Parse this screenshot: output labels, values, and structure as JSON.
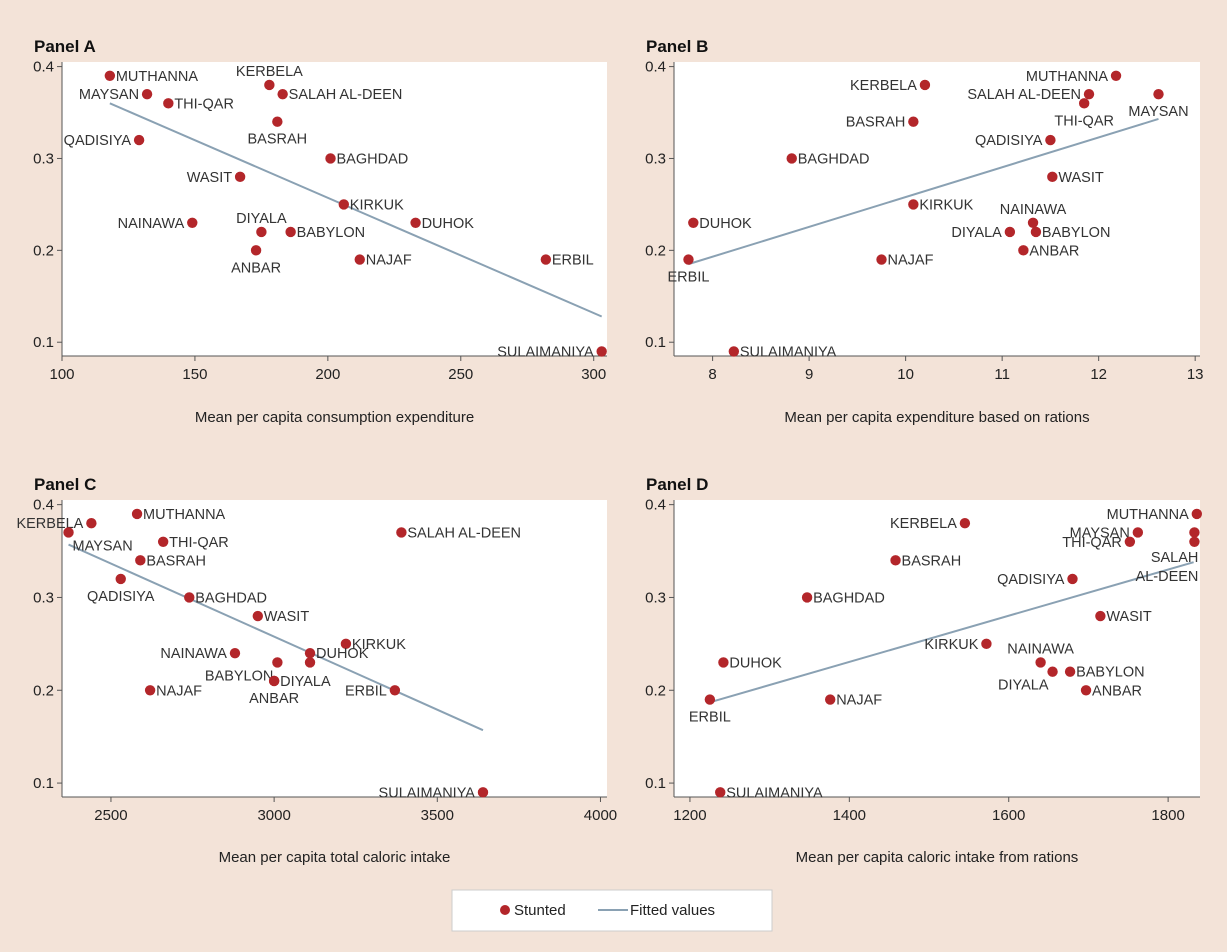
{
  "legend": {
    "stunted_label": "Stunted",
    "fitted_label": "Fitted values",
    "point_color": "#b3262a",
    "line_color": "#8aa1b3"
  },
  "chart_data": [
    {
      "panel": "Panel A",
      "type": "scatter",
      "xlabel": "Mean per capita consumption expenditure",
      "ylabel": "",
      "xlim": [
        100,
        305
      ],
      "ylim": [
        0.085,
        0.405
      ],
      "xticks": [
        100,
        150,
        200,
        250,
        300
      ],
      "yticks": [
        0.1,
        0.2,
        0.3,
        0.4
      ],
      "fit": [
        [
          118,
          0.36
        ],
        [
          303,
          0.128
        ]
      ],
      "points": [
        {
          "name": "MUTHANNA",
          "x": 118,
          "y": 0.39,
          "anchor": "right"
        },
        {
          "name": "MAYSAN",
          "x": 132,
          "y": 0.37,
          "anchor": "left"
        },
        {
          "name": "THI-QAR",
          "x": 140,
          "y": 0.36,
          "anchor": "right"
        },
        {
          "name": "QADISIYA",
          "x": 129,
          "y": 0.32,
          "anchor": "left"
        },
        {
          "name": "KERBELA",
          "x": 178,
          "y": 0.38,
          "anchor": "above"
        },
        {
          "name": "SALAH AL-DEEN",
          "x": 183,
          "y": 0.37,
          "anchor": "right"
        },
        {
          "name": "BASRAH",
          "x": 181,
          "y": 0.34,
          "anchor": "below"
        },
        {
          "name": "BAGHDAD",
          "x": 201,
          "y": 0.3,
          "anchor": "right"
        },
        {
          "name": "WASIT",
          "x": 167,
          "y": 0.28,
          "anchor": "left"
        },
        {
          "name": "KIRKUK",
          "x": 206,
          "y": 0.25,
          "anchor": "right"
        },
        {
          "name": "NAINAWA",
          "x": 149,
          "y": 0.23,
          "anchor": "left"
        },
        {
          "name": "DUHOK",
          "x": 233,
          "y": 0.23,
          "anchor": "right"
        },
        {
          "name": "DIYALA",
          "x": 175,
          "y": 0.22,
          "anchor": "above"
        },
        {
          "name": "BABYLON",
          "x": 186,
          "y": 0.22,
          "anchor": "right"
        },
        {
          "name": "ANBAR",
          "x": 173,
          "y": 0.2,
          "anchor": "below"
        },
        {
          "name": "NAJAF",
          "x": 212,
          "y": 0.19,
          "anchor": "right"
        },
        {
          "name": "ERBIL",
          "x": 282,
          "y": 0.19,
          "anchor": "right"
        },
        {
          "name": "SULAIMANIYA",
          "x": 303,
          "y": 0.09,
          "anchor": "left"
        }
      ]
    },
    {
      "panel": "Panel B",
      "type": "scatter",
      "xlabel": "Mean per capita expenditure based on rations",
      "ylabel": "",
      "xlim": [
        7.6,
        13.05
      ],
      "ylim": [
        0.085,
        0.405
      ],
      "xticks": [
        8,
        9,
        10,
        11,
        12,
        13
      ],
      "yticks": [
        0.1,
        0.2,
        0.3,
        0.4
      ],
      "fit": [
        [
          7.75,
          0.185
        ],
        [
          12.62,
          0.343
        ]
      ],
      "points": [
        {
          "name": "KERBELA",
          "x": 10.2,
          "y": 0.38,
          "anchor": "left"
        },
        {
          "name": "MUTHANNA",
          "x": 12.18,
          "y": 0.39,
          "anchor": "left"
        },
        {
          "name": "SALAH AL-DEEN",
          "x": 11.9,
          "y": 0.37,
          "anchor": "left"
        },
        {
          "name": "MAYSAN",
          "x": 12.62,
          "y": 0.37,
          "anchor": "below"
        },
        {
          "name": "THI-QAR",
          "x": 11.85,
          "y": 0.36,
          "anchor": "below"
        },
        {
          "name": "BASRAH",
          "x": 10.08,
          "y": 0.34,
          "anchor": "left"
        },
        {
          "name": "QADISIYA",
          "x": 11.5,
          "y": 0.32,
          "anchor": "left"
        },
        {
          "name": "BAGHDAD",
          "x": 8.82,
          "y": 0.3,
          "anchor": "right"
        },
        {
          "name": "WASIT",
          "x": 11.52,
          "y": 0.28,
          "anchor": "right"
        },
        {
          "name": "KIRKUK",
          "x": 10.08,
          "y": 0.25,
          "anchor": "right"
        },
        {
          "name": "NAINAWA",
          "x": 11.32,
          "y": 0.23,
          "anchor": "above"
        },
        {
          "name": "DUHOK",
          "x": 7.8,
          "y": 0.23,
          "anchor": "right"
        },
        {
          "name": "DIYALA",
          "x": 11.08,
          "y": 0.22,
          "anchor": "left"
        },
        {
          "name": "BABYLON",
          "x": 11.35,
          "y": 0.22,
          "anchor": "right"
        },
        {
          "name": "ANBAR",
          "x": 11.22,
          "y": 0.2,
          "anchor": "right"
        },
        {
          "name": "NAJAF",
          "x": 9.75,
          "y": 0.19,
          "anchor": "right"
        },
        {
          "name": "ERBIL",
          "x": 7.75,
          "y": 0.19,
          "anchor": "below"
        },
        {
          "name": "SULAIMANIYA",
          "x": 8.22,
          "y": 0.09,
          "anchor": "right"
        }
      ]
    },
    {
      "panel": "Panel C",
      "type": "scatter",
      "xlabel": "Mean per capita total caloric intake",
      "ylabel": "",
      "xlim": [
        2350,
        4020
      ],
      "ylim": [
        0.085,
        0.405
      ],
      "xticks": [
        2500,
        3000,
        3500,
        4000
      ],
      "yticks": [
        0.1,
        0.2,
        0.3,
        0.4
      ],
      "fit": [
        [
          2370,
          0.357
        ],
        [
          3640,
          0.157
        ]
      ],
      "points": [
        {
          "name": "KERBELA",
          "x": 2440,
          "y": 0.38,
          "anchor": "left"
        },
        {
          "name": "MUTHANNA",
          "x": 2580,
          "y": 0.39,
          "anchor": "right"
        },
        {
          "name": "MAYSAN",
          "x": 2370,
          "y": 0.37,
          "anchor": "below-right"
        },
        {
          "name": "THI-QAR",
          "x": 2660,
          "y": 0.36,
          "anchor": "right"
        },
        {
          "name": "SALAH AL-DEEN",
          "x": 3390,
          "y": 0.37,
          "anchor": "right"
        },
        {
          "name": "BASRAH",
          "x": 2590,
          "y": 0.34,
          "anchor": "right"
        },
        {
          "name": "QADISIYA",
          "x": 2530,
          "y": 0.32,
          "anchor": "below"
        },
        {
          "name": "BAGHDAD",
          "x": 2740,
          "y": 0.3,
          "anchor": "right"
        },
        {
          "name": "WASIT",
          "x": 2950,
          "y": 0.28,
          "anchor": "right"
        },
        {
          "name": "KIRKUK",
          "x": 3220,
          "y": 0.25,
          "anchor": "right"
        },
        {
          "name": "NAINAWA",
          "x": 2880,
          "y": 0.24,
          "anchor": "left"
        },
        {
          "name": "DUHOK",
          "x": 3110,
          "y": 0.24,
          "anchor": "right"
        },
        {
          "name": "BABYLON",
          "x": 3010,
          "y": 0.23,
          "anchor": "below-left"
        },
        {
          "name": "DUHOK_2",
          "x": 3110,
          "y": 0.23,
          "anchor": "none"
        },
        {
          "name": "DIYALA",
          "x": 3000,
          "y": 0.21,
          "anchor": "right"
        },
        {
          "name": "ANBAR",
          "x": 3000,
          "y": 0.21,
          "anchor": "below"
        },
        {
          "name": "NAJAF",
          "x": 2620,
          "y": 0.2,
          "anchor": "right"
        },
        {
          "name": "ERBIL",
          "x": 3370,
          "y": 0.2,
          "anchor": "left"
        },
        {
          "name": "SULAIMANIYA",
          "x": 3640,
          "y": 0.09,
          "anchor": "left"
        }
      ]
    },
    {
      "panel": "Panel D",
      "type": "scatter",
      "xlabel": "Mean per capita caloric intake from rations",
      "ylabel": "",
      "xlim": [
        1180,
        1840
      ],
      "ylim": [
        0.085,
        0.405
      ],
      "xticks": [
        1200,
        1400,
        1600,
        1800
      ],
      "yticks": [
        0.1,
        0.2,
        0.3,
        0.4
      ],
      "fit": [
        [
          1225,
          0.187
        ],
        [
          1832,
          0.338
        ]
      ],
      "points": [
        {
          "name": "KERBELA",
          "x": 1545,
          "y": 0.38,
          "anchor": "left"
        },
        {
          "name": "MUTHANNA",
          "x": 1836,
          "y": 0.39,
          "anchor": "left"
        },
        {
          "name": "MAYSAN",
          "x": 1762,
          "y": 0.37,
          "anchor": "left"
        },
        {
          "name": "SALAH AL-DEEN_DOT",
          "x": 1833,
          "y": 0.37,
          "anchor": "none"
        },
        {
          "name": "THI-QAR",
          "x": 1752,
          "y": 0.36,
          "anchor": "left"
        },
        {
          "name": "SALAH AL-DEEN",
          "x": 1833,
          "y": 0.36,
          "anchor": "stacked"
        },
        {
          "name": "BASRAH",
          "x": 1458,
          "y": 0.34,
          "anchor": "right"
        },
        {
          "name": "QADISIYA",
          "x": 1680,
          "y": 0.32,
          "anchor": "left"
        },
        {
          "name": "BAGHDAD",
          "x": 1347,
          "y": 0.3,
          "anchor": "right"
        },
        {
          "name": "WASIT",
          "x": 1715,
          "y": 0.28,
          "anchor": "right"
        },
        {
          "name": "KIRKUK",
          "x": 1572,
          "y": 0.25,
          "anchor": "left"
        },
        {
          "name": "NAINAWA",
          "x": 1640,
          "y": 0.23,
          "anchor": "above"
        },
        {
          "name": "DUHOK",
          "x": 1242,
          "y": 0.23,
          "anchor": "right"
        },
        {
          "name": "DIYALA",
          "x": 1655,
          "y": 0.22,
          "anchor": "below-left"
        },
        {
          "name": "BABYLON",
          "x": 1677,
          "y": 0.22,
          "anchor": "right"
        },
        {
          "name": "ANBAR",
          "x": 1697,
          "y": 0.2,
          "anchor": "right"
        },
        {
          "name": "NAJAF",
          "x": 1376,
          "y": 0.19,
          "anchor": "right"
        },
        {
          "name": "ERBIL",
          "x": 1225,
          "y": 0.19,
          "anchor": "below"
        },
        {
          "name": "SULAIMANIYA",
          "x": 1238,
          "y": 0.09,
          "anchor": "right"
        }
      ]
    }
  ]
}
